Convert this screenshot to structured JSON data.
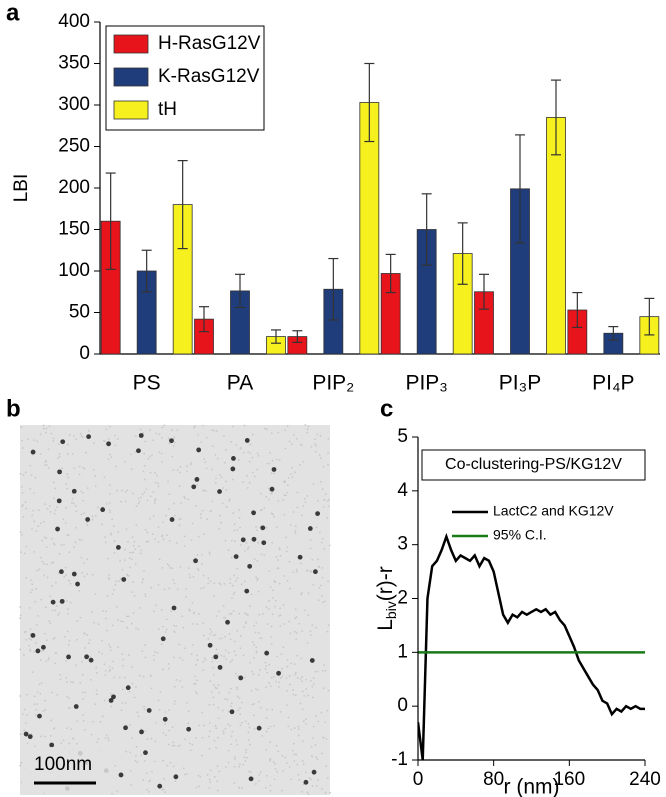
{
  "chart_data": [
    {
      "type": "bar",
      "panel": "a",
      "ylabel": "LBI",
      "categories": [
        "PS",
        "PA",
        "PIP₂",
        "PIP₃",
        "PI₃P",
        "PI₄P"
      ],
      "series": [
        {
          "name": "H-RasG12V",
          "color": "#e8141c",
          "values": [
            160,
            42,
            21,
            97,
            75,
            53
          ],
          "errors": [
            58,
            15,
            7,
            23,
            21,
            21
          ]
        },
        {
          "name": "K-RasG12V",
          "color": "#1f3d7a",
          "values": [
            100,
            76,
            78,
            150,
            199,
            25
          ],
          "errors": [
            25,
            20,
            37,
            43,
            65,
            8
          ]
        },
        {
          "name": "tH",
          "color": "#f5f01e",
          "values": [
            180,
            21,
            303,
            121,
            285,
            45
          ],
          "errors": [
            53,
            8,
            47,
            37,
            45,
            22
          ]
        }
      ],
      "ylim": [
        0,
        400
      ],
      "yticks": [
        0,
        50,
        100,
        150,
        200,
        250,
        300,
        350,
        400
      ],
      "legend": "top-left"
    },
    {
      "type": "image",
      "panel": "b",
      "scale_bar_label": "100nm"
    },
    {
      "type": "line",
      "panel": "c",
      "title": "Co-clustering-PS/KG12V",
      "ylabel": [
        "L",
        "biv",
        "(r)-r"
      ],
      "xlabel": "r (nm)",
      "x": [
        0,
        5,
        10,
        15,
        20,
        25,
        30,
        35,
        40,
        45,
        50,
        55,
        60,
        65,
        70,
        75,
        80,
        85,
        90,
        95,
        100,
        105,
        110,
        115,
        120,
        125,
        130,
        135,
        140,
        145,
        150,
        155,
        160,
        165,
        170,
        175,
        180,
        185,
        190,
        195,
        200,
        205,
        210,
        215,
        220,
        225,
        230,
        235,
        240
      ],
      "series": [
        {
          "name": "LactC2 and KG12V",
          "color": "#000000",
          "values": [
            -0.3,
            -1.0,
            2.0,
            2.6,
            2.7,
            2.9,
            3.15,
            2.9,
            2.7,
            2.8,
            2.75,
            2.7,
            2.8,
            2.6,
            2.75,
            2.7,
            2.5,
            2.1,
            1.7,
            1.55,
            1.7,
            1.65,
            1.75,
            1.7,
            1.75,
            1.8,
            1.75,
            1.8,
            1.7,
            1.75,
            1.6,
            1.5,
            1.3,
            1.1,
            0.85,
            0.7,
            0.55,
            0.4,
            0.3,
            0.1,
            0.05,
            -0.15,
            -0.05,
            -0.1,
            0.0,
            -0.05,
            0.0,
            -0.05,
            -0.05
          ]
        },
        {
          "name": "95% C.I.",
          "color": "#1a7a1a",
          "values": [
            1,
            1,
            1,
            1,
            1,
            1,
            1,
            1,
            1,
            1,
            1,
            1,
            1,
            1,
            1,
            1,
            1,
            1,
            1,
            1,
            1,
            1,
            1,
            1,
            1,
            1,
            1,
            1,
            1,
            1,
            1,
            1,
            1,
            1,
            1,
            1,
            1,
            1,
            1,
            1,
            1,
            1,
            1,
            1,
            1,
            1,
            1,
            1,
            1
          ]
        }
      ],
      "xlim": [
        0,
        240
      ],
      "xticks": [
        0,
        80,
        160,
        240
      ],
      "ylim": [
        -1,
        5
      ],
      "yticks": [
        -1,
        0,
        1,
        2,
        3,
        4,
        5
      ]
    }
  ]
}
